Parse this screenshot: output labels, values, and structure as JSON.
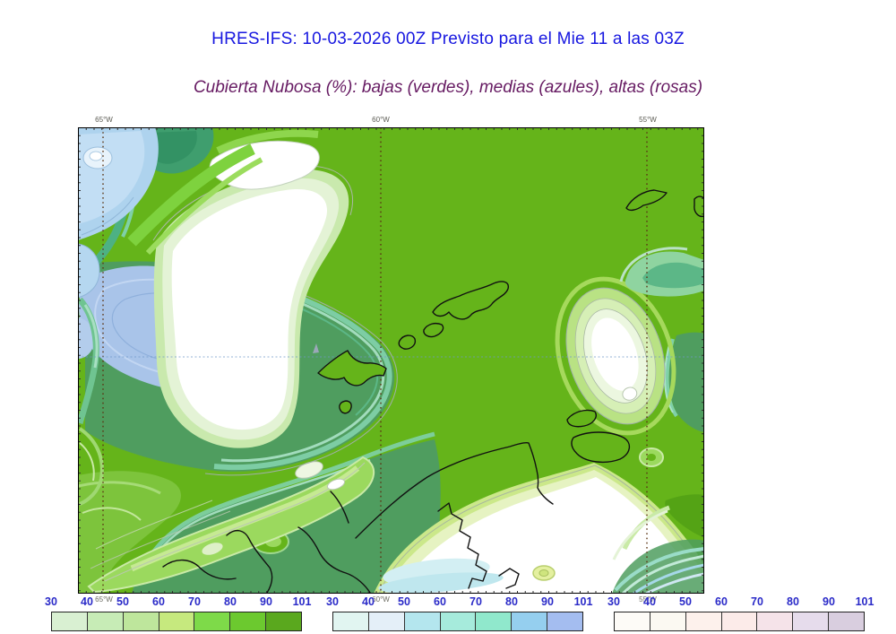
{
  "header": {
    "title": "HRES-IFS: 10-03-2026 00Z Previsto para el Mie 11 a las 03Z",
    "subtitle": "Cubierta Nubosa (%): bajas (verdes), medias (azules), altas (rosas)"
  },
  "map": {
    "meridians": [
      {
        "label": "65°W"
      },
      {
        "label": "60°W"
      },
      {
        "label": "55°W"
      }
    ]
  },
  "colorbars": [
    {
      "id": "low-clouds-green",
      "ticks": [
        "30",
        "40",
        "50",
        "60",
        "70",
        "80",
        "90",
        "101"
      ],
      "colors": [
        "#d9f0d2",
        "#c7ecb6",
        "#bee69c",
        "#c6e97e",
        "#7eda49",
        "#6cc92f",
        "#5aa81e"
      ]
    },
    {
      "id": "mid-clouds-blue",
      "ticks": [
        "30",
        "40",
        "50",
        "60",
        "70",
        "80",
        "90",
        "101"
      ],
      "colors": [
        "#e1f5f1",
        "#e4eff8",
        "#b4e6ee",
        "#a6ebdc",
        "#90e8cc",
        "#95cfef",
        "#a4bdf0"
      ]
    },
    {
      "id": "high-clouds-pink",
      "ticks": [
        "30",
        "40",
        "50",
        "60",
        "70",
        "80",
        "90",
        "101"
      ],
      "colors": [
        "#fdfbf7",
        "#fbf9f2",
        "#fdf1ec",
        "#fcebe9",
        "#f5e3e9",
        "#e6dcec",
        "#d9cedf"
      ]
    }
  ],
  "colors": {
    "title": "#1717e0",
    "subtitle": "#661a62",
    "tick_label": "#2a2ac8",
    "meridian_label": "#5a5a52",
    "map_base_green": "#65b41a",
    "map_dark_seagreen": "#4f9d5f",
    "map_lavender_blue": "#a9c4e9",
    "map_light_blue": "#aed3ee"
  }
}
